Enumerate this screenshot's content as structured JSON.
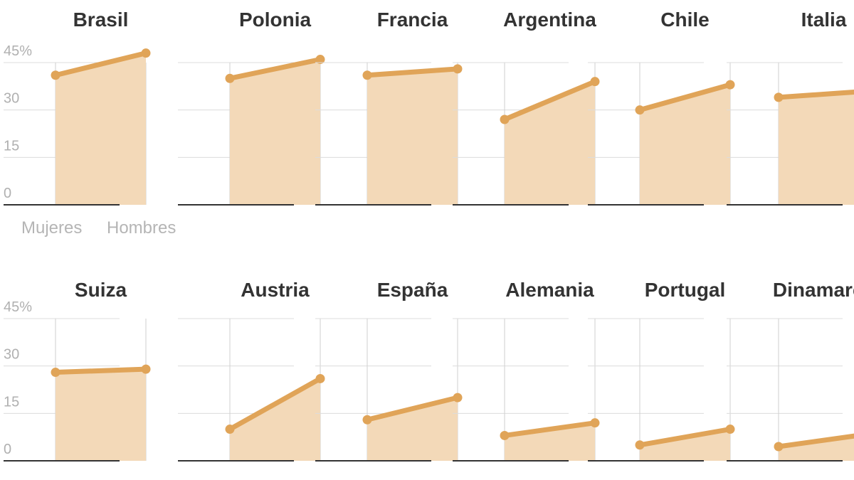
{
  "chart_data": {
    "type": "line",
    "ylim": [
      0,
      45
    ],
    "yticks": [
      "0",
      "15",
      "30",
      "45%"
    ],
    "x_labels": [
      "Mujeres",
      "Hombres"
    ],
    "colors": {
      "line": "#e0a458",
      "area": "#f3d9b8",
      "grid": "#dcdcdc",
      "axis": "#333333"
    },
    "panels": [
      {
        "title": "Brasil",
        "values": [
          41,
          48
        ]
      },
      {
        "title": "Polonia",
        "values": [
          40,
          46
        ]
      },
      {
        "title": "Francia",
        "values": [
          41,
          43
        ]
      },
      {
        "title": "Argentina",
        "values": [
          27,
          39
        ]
      },
      {
        "title": "Chile",
        "values": [
          30,
          38
        ]
      },
      {
        "title": "Italia",
        "values": [
          34,
          36
        ]
      },
      {
        "title": "Suiza",
        "values": [
          28,
          29
        ]
      },
      {
        "title": "Austria",
        "values": [
          10,
          26
        ]
      },
      {
        "title": "España",
        "values": [
          13,
          20
        ]
      },
      {
        "title": "Alemania",
        "values": [
          8,
          12
        ]
      },
      {
        "title": "Portugal",
        "values": [
          5,
          10
        ]
      },
      {
        "title": "Dinamarca",
        "values": [
          4.5,
          8.5
        ]
      }
    ]
  }
}
